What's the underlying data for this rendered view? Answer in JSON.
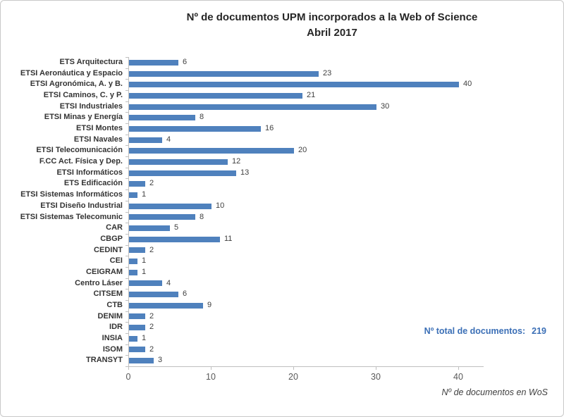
{
  "chart_data": {
    "type": "bar",
    "orientation": "horizontal",
    "title": "Nº de documentos UPM incorporados a la Web of Science",
    "subtitle": "Abril 2017",
    "categories": [
      "ETS Arquitectura",
      "ETSI Aeronáutica y Espacio",
      "ETSI Agronómica, A. y B.",
      "ETSI Caminos, C. y P.",
      "ETSI Industriales",
      "ETSI Minas y Energía",
      "ETSI Montes",
      "ETSI Navales",
      "ETSI Telecomunicación",
      "F.CC Act. Física y Dep.",
      "ETSI Informáticos",
      "ETS Edificación",
      "ETSI Sistemas Informáticos",
      "ETSI Diseño Industrial",
      "ETSI Sistemas Telecomunic",
      "CAR",
      "CBGP",
      "CEDINT",
      "CEI",
      "CEIGRAM",
      "Centro Láser",
      "CITSEM",
      "CTB",
      "DENIM",
      "IDR",
      "INSIA",
      "ISOM",
      "TRANSYT"
    ],
    "values": [
      6,
      23,
      40,
      21,
      30,
      8,
      16,
      4,
      20,
      12,
      13,
      2,
      1,
      10,
      8,
      5,
      11,
      2,
      1,
      1,
      4,
      6,
      9,
      2,
      2,
      1,
      2,
      3
    ],
    "xlabel": "Nº de documentos en WoS",
    "xlim": [
      0,
      43
    ],
    "xticks": [
      0,
      10,
      20,
      30,
      40
    ],
    "grid": false,
    "data_labels": true,
    "bar_color": "#4F81BD",
    "axis_color": "#BFBFBF",
    "annotation": {
      "label": "Nº total de documentos:",
      "value": "219",
      "color": "#3B6FB6"
    }
  }
}
